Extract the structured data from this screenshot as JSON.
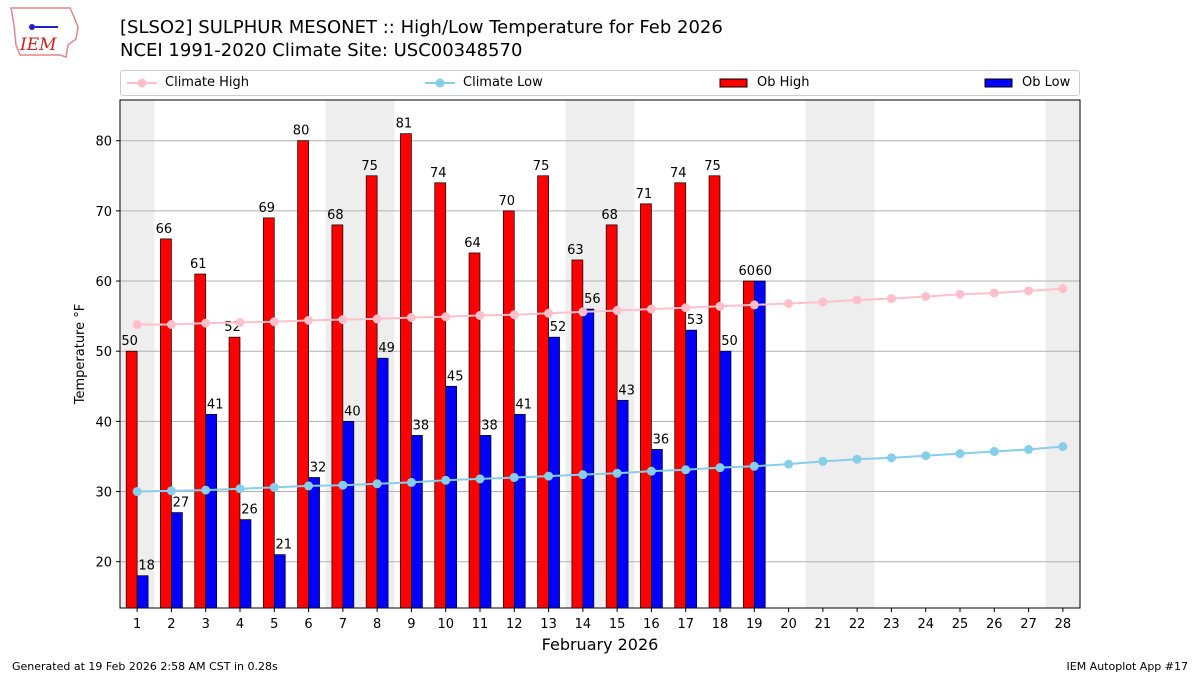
{
  "title_line1": "[SLSO2] SULPHUR MESONET :: High/Low Temperature for Feb 2026",
  "title_line2": "NCEI 1991-2020 Climate Site: USC00348570",
  "logo_text": "IEM",
  "footer_left": "Generated at 19 Feb 2026 2:58 AM CST in 0.28s",
  "footer_right": "IEM Autoplot App #17",
  "chart_data": {
    "type": "bar",
    "xlabel": "February 2026",
    "ylabel": "Temperature °F",
    "xlim": [
      0.5,
      28.5
    ],
    "ylim": [
      13.4,
      85.8
    ],
    "yticks": [
      20,
      30,
      40,
      50,
      60,
      70,
      80
    ],
    "grid": "horizontal",
    "legend": "top",
    "weekend_days": [
      1,
      7,
      8,
      14,
      15,
      21,
      22,
      28
    ],
    "days": [
      1,
      2,
      3,
      4,
      5,
      6,
      7,
      8,
      9,
      10,
      11,
      12,
      13,
      14,
      15,
      16,
      17,
      18,
      19,
      20,
      21,
      22,
      23,
      24,
      25,
      26,
      27,
      28
    ],
    "series": [
      {
        "name": "Climate High",
        "type": "line",
        "color": "#ffc0cb",
        "values": [
          53.8,
          53.8,
          54.0,
          54.1,
          54.2,
          54.4,
          54.5,
          54.6,
          54.8,
          54.9,
          55.1,
          55.2,
          55.4,
          55.6,
          55.8,
          56.0,
          56.2,
          56.4,
          56.6,
          56.8,
          57.0,
          57.3,
          57.5,
          57.8,
          58.1,
          58.3,
          58.6,
          58.9
        ]
      },
      {
        "name": "Climate Low",
        "type": "line",
        "color": "#87ceeb",
        "values": [
          30.0,
          30.1,
          30.2,
          30.4,
          30.6,
          30.8,
          30.9,
          31.1,
          31.3,
          31.6,
          31.8,
          32.0,
          32.2,
          32.4,
          32.6,
          32.9,
          33.1,
          33.4,
          33.6,
          33.9,
          34.3,
          34.6,
          34.8,
          35.1,
          35.4,
          35.7,
          36.0,
          36.4
        ]
      },
      {
        "name": "Ob High",
        "type": "bar",
        "color": "#ff0000",
        "values": [
          50,
          66,
          61,
          52,
          69,
          80,
          68,
          75,
          81,
          74,
          64,
          70,
          75,
          63,
          68,
          71,
          74,
          75,
          60
        ]
      },
      {
        "name": "Ob Low",
        "type": "bar",
        "color": "#0000ff",
        "values": [
          18,
          27,
          41,
          26,
          21,
          32,
          40,
          49,
          38,
          45,
          38,
          41,
          52,
          56,
          43,
          36,
          53,
          50,
          60
        ]
      }
    ]
  }
}
